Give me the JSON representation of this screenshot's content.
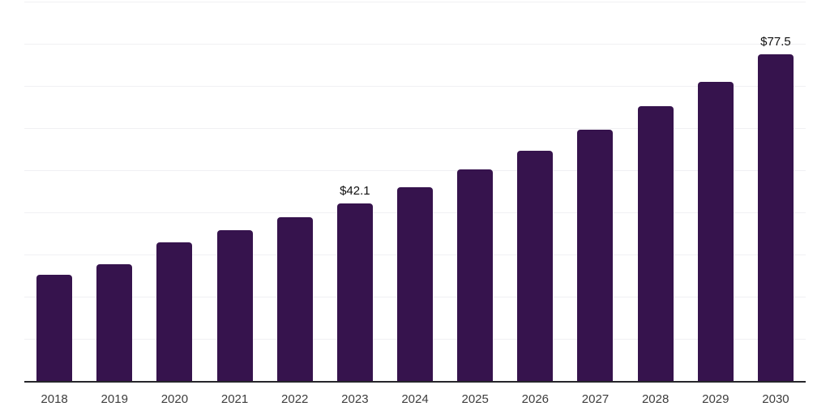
{
  "chart_data": {
    "type": "bar",
    "title": "",
    "xlabel": "",
    "ylabel": "",
    "categories": [
      "2018",
      "2019",
      "2020",
      "2021",
      "2022",
      "2023",
      "2024",
      "2025",
      "2026",
      "2027",
      "2028",
      "2029",
      "2030"
    ],
    "values": [
      25.1,
      27.7,
      32.8,
      35.7,
      38.8,
      42.1,
      45.9,
      50.1,
      54.7,
      59.7,
      65.1,
      71.0,
      77.5
    ],
    "data_labels": [
      {
        "category": "2023",
        "text": "$42.1"
      },
      {
        "category": "2030",
        "text": "$77.5"
      }
    ],
    "ylim": [
      0,
      90
    ],
    "grid": true,
    "grid_step": 10,
    "y_axis_labels_visible": false,
    "legend_position": "none",
    "colors": {
      "bar": "#36134d",
      "gridline": "#f0f0f3",
      "axis_line": "#26262b",
      "tick_label": "#3d3d3d",
      "data_label": "#111111",
      "background": "#ffffff"
    }
  }
}
